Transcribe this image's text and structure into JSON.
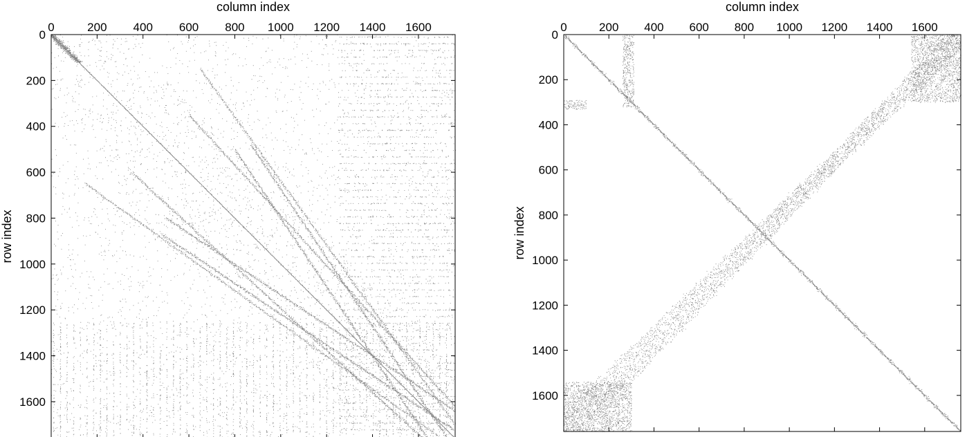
{
  "chart_data": [
    {
      "type": "heatmap",
      "subtype": "sparsity-pattern",
      "title": "",
      "xlabel": "column index",
      "ylabel": "row index",
      "xaxis_position": "top",
      "yaxis_direction": "down",
      "xlim": [
        0,
        1760
      ],
      "ylim": [
        0,
        1760
      ],
      "xticks": [
        0,
        200,
        400,
        600,
        800,
        1000,
        1200,
        1400,
        1600
      ],
      "yticks": [
        0,
        200,
        400,
        600,
        800,
        1000,
        1200,
        1400,
        1600
      ],
      "grid": false,
      "nonzero_color": "#555555",
      "structure": {
        "main_diagonal": true,
        "off_diagonal_bands": [
          {
            "from": [
              500,
              800
            ],
            "to": [
              1760,
              1640
            ]
          },
          {
            "from": [
              600,
              350
            ],
            "to": [
              1760,
              1620
            ]
          },
          {
            "from": [
              150,
              650
            ],
            "to": [
              1700,
              1760
            ]
          },
          {
            "from": [
              870,
              480
            ],
            "to": [
              1720,
              1750
            ]
          }
        ],
        "scatter_density": 0.35,
        "dense_corner_block": [
          [
            0,
            0
          ],
          [
            120,
            120
          ]
        ]
      }
    },
    {
      "type": "heatmap",
      "subtype": "sparsity-pattern",
      "title": "",
      "xlabel": "column index",
      "ylabel": "row index",
      "xaxis_position": "top",
      "yaxis_direction": "down",
      "xlim": [
        0,
        1760
      ],
      "ylim": [
        0,
        1760
      ],
      "xticks": [
        0,
        200,
        400,
        600,
        800,
        1000,
        1200,
        1400,
        1600
      ],
      "yticks": [
        0,
        200,
        400,
        600,
        800,
        1000,
        1200,
        1400,
        1600
      ],
      "grid": false,
      "nonzero_color": "#555555",
      "structure": {
        "main_diagonal": true,
        "diagonal_block_size": 40,
        "anti_diagonal_band": {
          "from": [
            1760,
            0
          ],
          "to": [
            0,
            1760
          ],
          "width": 120
        },
        "corner_blocks": [
          {
            "x": [
              0,
              300
            ],
            "y": [
              1540,
              1760
            ]
          },
          {
            "x": [
              1540,
              1760
            ],
            "y": [
              0,
              300
            ]
          },
          {
            "x": [
              0,
              100
            ],
            "y": [
              290,
              330
            ]
          },
          {
            "x": [
              260,
              310
            ],
            "y": [
              0,
              320
            ]
          }
        ]
      }
    }
  ]
}
